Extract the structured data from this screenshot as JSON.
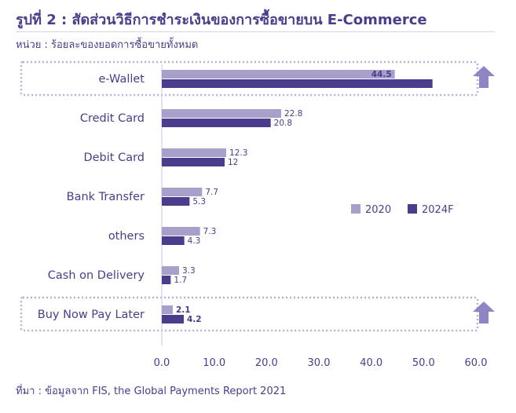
{
  "title": "รูปที่ 2 : สัดส่วนวิธีการชำระเงินของการซื้อขายบน E-Commerce",
  "unit_note": "หน่วย : ร้อยละของยอดการซื้อขายทั้งหมด",
  "source_note": "ที่มา : ข้อมูลจาก FIS, the Global Payments Report 2021",
  "colors": {
    "series_2020": "#a89fcb",
    "series_2024F": "#4b3c8c",
    "text": "#4b3c8c",
    "highlight_border": "#b7b0d9",
    "arrow": "#8e86c2"
  },
  "chart_data": {
    "type": "bar",
    "orientation": "horizontal",
    "categories": [
      "e-Wallet",
      "Credit Card",
      "Debit Card",
      "Bank Transfer",
      "others",
      "Cash on Delivery",
      "Buy Now Pay Later"
    ],
    "series": [
      {
        "name": "2020",
        "values": [
          44.5,
          22.8,
          12.3,
          7.7,
          7.3,
          3.3,
          2.1
        ]
      },
      {
        "name": "2024F",
        "values": [
          51.7,
          20.8,
          12,
          5.3,
          4.3,
          1.7,
          4.2
        ]
      }
    ],
    "value_labels": [
      [
        "44.5",
        "51.7"
      ],
      [
        "22.8",
        "20.8"
      ],
      [
        "12.3",
        "12"
      ],
      [
        "7.7",
        "5.3"
      ],
      [
        "7.3",
        "4.3"
      ],
      [
        "3.3",
        "1.7"
      ],
      [
        "2.1",
        "4.2"
      ]
    ],
    "xlim": [
      0,
      60
    ],
    "x_ticks": [
      "0.0",
      "10.0",
      "20.0",
      "30.0",
      "40.0",
      "50.0",
      "60.0"
    ],
    "grid": false,
    "legend": "right",
    "highlighted_categories": [
      "e-Wallet",
      "Buy Now Pay Later"
    ]
  }
}
